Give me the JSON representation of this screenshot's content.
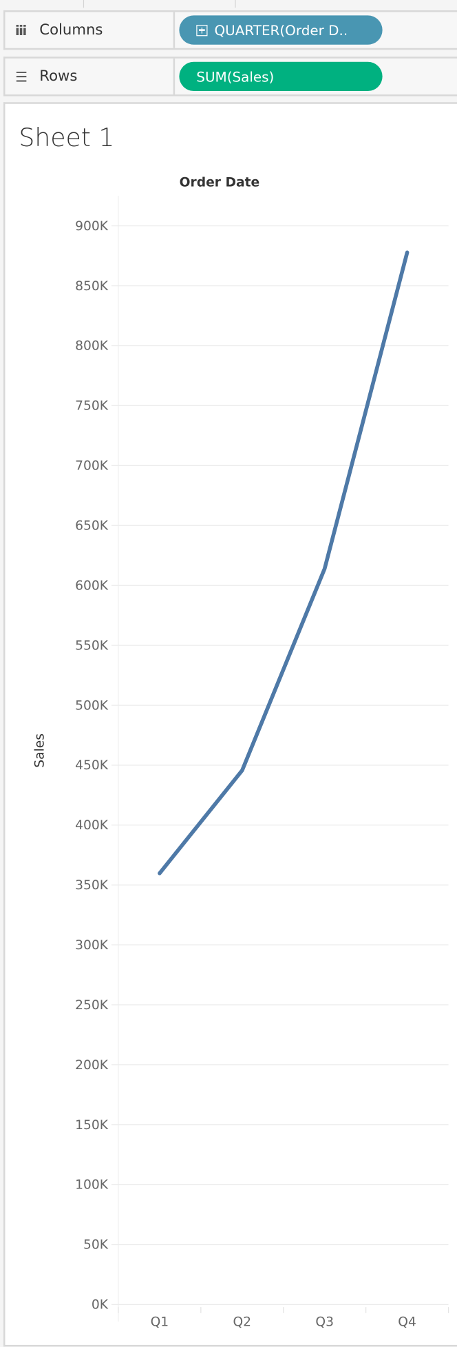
{
  "shelves": {
    "columns": {
      "label": "Columns",
      "icon": "columns-icon",
      "pill": "QUARTER(Order D..",
      "pill_color": "#4996b2"
    },
    "rows": {
      "label": "Rows",
      "icon": "rows-list-icon",
      "pill": "SUM(Sales)",
      "pill_color": "#00b180"
    }
  },
  "sheet": {
    "title": "Sheet 1"
  },
  "chart_data": {
    "type": "line",
    "title": "Sheet 1",
    "xlabel": "Order Date",
    "ylabel": "Sales",
    "categories": [
      "Q1",
      "Q2",
      "Q3",
      "Q4"
    ],
    "values": [
      359800,
      445600,
      614000,
      877800
    ],
    "ylim": [
      0,
      900000
    ],
    "yticks": [
      0,
      50000,
      100000,
      150000,
      200000,
      250000,
      300000,
      350000,
      400000,
      450000,
      500000,
      550000,
      600000,
      650000,
      700000,
      750000,
      800000,
      850000,
      900000
    ],
    "ytick_labels": [
      "0K",
      "50K",
      "100K",
      "150K",
      "200K",
      "250K",
      "300K",
      "350K",
      "400K",
      "450K",
      "500K",
      "550K",
      "600K",
      "650K",
      "700K",
      "750K",
      "800K",
      "850K",
      "900K"
    ],
    "grid": true,
    "line_color": "#4e79a7"
  }
}
